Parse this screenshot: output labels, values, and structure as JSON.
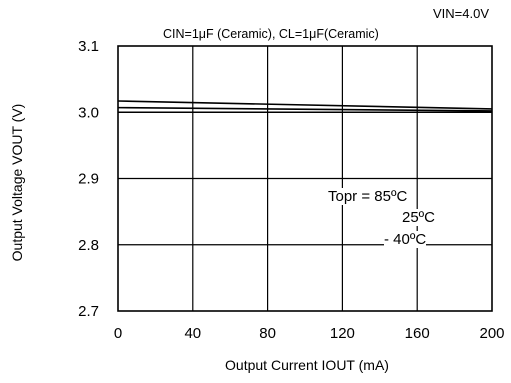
{
  "conditions": {
    "vin": "VIN=4.0V",
    "caps": "CIN=1μF (Ceramic), CL=1μF(Ceramic)"
  },
  "legend": {
    "title": "Topr = 85ºC",
    "items": [
      "25ºC",
      "- 40ºC"
    ]
  },
  "chart_data": {
    "type": "line",
    "xlabel": "Output Current IOUT (mA)",
    "ylabel": "Output Voltage VOUT (V)",
    "xlim": [
      0,
      200
    ],
    "ylim": [
      2.7,
      3.1
    ],
    "xticks": [
      "0",
      "40",
      "80",
      "120",
      "160",
      "200"
    ],
    "yticks": [
      "2.7",
      "2.8",
      "2.9",
      "3.0",
      "3.1"
    ],
    "grid": true,
    "legend_position": "right-middle",
    "series": [
      {
        "name": "Topr = 85ºC",
        "x": [
          0,
          200
        ],
        "y": [
          3.017,
          3.005
        ]
      },
      {
        "name": "25ºC",
        "x": [
          0,
          200
        ],
        "y": [
          3.007,
          3.002
        ]
      },
      {
        "name": "- 40ºC",
        "x": [
          0,
          200
        ],
        "y": [
          3.0,
          3.0
        ]
      }
    ]
  }
}
